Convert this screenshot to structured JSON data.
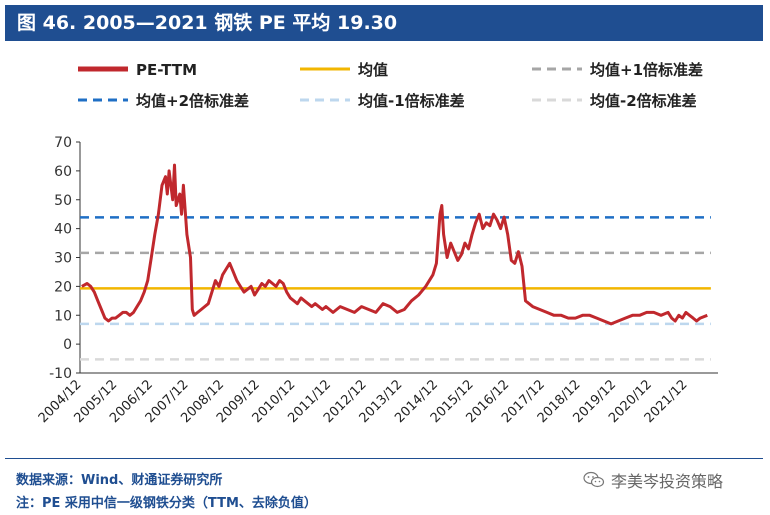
{
  "title": "图 46. 2005—2021 钢铁 PE 平均 19.30",
  "footer": {
    "source": "数据来源：Wind、财通证券研究所",
    "note": "注：PE 采用中信一级钢铁分类（TTM、去除负值）"
  },
  "watermark": {
    "text": "李美岑投资策略",
    "icon": "wechat-icon"
  },
  "chart_data": {
    "type": "line",
    "ylim": [
      -10,
      70
    ],
    "yticks": [
      -10,
      0,
      10,
      20,
      30,
      40,
      50,
      60,
      70
    ],
    "x_categories": [
      "2004/12",
      "2005/12",
      "2006/12",
      "2007/12",
      "2008/12",
      "2009/12",
      "2010/12",
      "2011/12",
      "2012/12",
      "2013/12",
      "2014/12",
      "2015/12",
      "2016/12",
      "2017/12",
      "2018/12",
      "2019/12",
      "2020/12",
      "2021/12"
    ],
    "x_domain": [
      2004.9,
      2022.8
    ],
    "grid": false,
    "legend_position": "top",
    "series": [
      {
        "name": "PE-TTM",
        "style": "solid",
        "color": "#c0282d",
        "width": 4,
        "x": [
          2004.95,
          2005.1,
          2005.2,
          2005.3,
          2005.4,
          2005.5,
          2005.6,
          2005.7,
          2005.8,
          2005.9,
          2006.0,
          2006.1,
          2006.2,
          2006.3,
          2006.4,
          2006.5,
          2006.6,
          2006.7,
          2006.8,
          2006.9,
          2007.0,
          2007.1,
          2007.2,
          2007.3,
          2007.35,
          2007.4,
          2007.5,
          2007.55,
          2007.6,
          2007.7,
          2007.75,
          2007.8,
          2007.9,
          2008.0,
          2008.05,
          2008.1,
          2008.2,
          2008.3,
          2008.4,
          2008.5,
          2008.6,
          2008.7,
          2008.8,
          2008.9,
          2009.0,
          2009.1,
          2009.2,
          2009.3,
          2009.4,
          2009.5,
          2009.6,
          2009.7,
          2009.8,
          2009.9,
          2010.0,
          2010.1,
          2010.2,
          2010.3,
          2010.4,
          2010.5,
          2010.6,
          2010.7,
          2010.8,
          2010.9,
          2011.0,
          2011.1,
          2011.2,
          2011.3,
          2011.4,
          2011.5,
          2011.6,
          2011.7,
          2011.8,
          2011.9,
          2012.0,
          2012.2,
          2012.4,
          2012.6,
          2012.8,
          2013.0,
          2013.2,
          2013.4,
          2013.6,
          2013.8,
          2014.0,
          2014.2,
          2014.4,
          2014.6,
          2014.8,
          2014.9,
          2015.0,
          2015.05,
          2015.1,
          2015.2,
          2015.3,
          2015.4,
          2015.5,
          2015.6,
          2015.7,
          2015.8,
          2015.9,
          2016.0,
          2016.1,
          2016.2,
          2016.3,
          2016.4,
          2016.5,
          2016.6,
          2016.7,
          2016.8,
          2016.9,
          2017.0,
          2017.1,
          2017.2,
          2017.3,
          2017.4,
          2017.5,
          2017.6,
          2017.8,
          2018.0,
          2018.2,
          2018.4,
          2018.6,
          2018.8,
          2019.0,
          2019.2,
          2019.4,
          2019.6,
          2019.8,
          2020.0,
          2020.2,
          2020.4,
          2020.6,
          2020.8,
          2021.0,
          2021.2,
          2021.4,
          2021.5,
          2021.6,
          2021.7,
          2021.8,
          2021.9,
          2022.0,
          2022.1,
          2022.2,
          2022.3,
          2022.5
        ],
        "y": [
          20,
          21,
          20,
          18,
          15,
          12,
          9,
          8,
          9,
          9,
          10,
          11,
          11,
          10,
          11,
          13,
          15,
          18,
          22,
          30,
          38,
          45,
          55,
          58,
          52,
          60,
          50,
          62,
          48,
          52,
          45,
          55,
          38,
          30,
          12,
          10,
          11,
          12,
          13,
          14,
          18,
          22,
          20,
          24,
          26,
          28,
          25,
          22,
          20,
          18,
          19,
          20,
          17,
          19,
          21,
          20,
          22,
          21,
          20,
          22,
          21,
          18,
          16,
          15,
          14,
          16,
          15,
          14,
          13,
          14,
          13,
          12,
          13,
          12,
          11,
          13,
          12,
          11,
          13,
          12,
          11,
          14,
          13,
          11,
          12,
          15,
          17,
          20,
          24,
          28,
          45,
          48,
          38,
          30,
          35,
          32,
          29,
          31,
          35,
          33,
          38,
          42,
          45,
          40,
          42,
          41,
          45,
          43,
          40,
          44,
          38,
          29,
          28,
          32,
          27,
          15,
          14,
          13,
          12,
          11,
          10,
          10,
          9,
          9,
          10,
          10,
          9,
          8,
          7,
          8,
          9,
          10,
          10,
          11,
          11,
          10,
          11,
          9,
          8,
          10,
          9,
          11,
          10,
          9,
          8,
          9,
          10
        ]
      },
      {
        "name": "均值",
        "style": "solid",
        "color": "#f2b600",
        "width": 2.5,
        "value": 19.3
      },
      {
        "name": "均值+1倍标准差",
        "style": "dash",
        "color": "#a6a6a6",
        "width": 2.5,
        "value": 31.6
      },
      {
        "name": "均值+2倍标准差",
        "style": "dash",
        "color": "#1f6fc5",
        "width": 2.5,
        "value": 43.9
      },
      {
        "name": "均值-1倍标准差",
        "style": "dash",
        "color": "#bdd7ee",
        "width": 2.5,
        "value": 7.0
      },
      {
        "name": "均值-2倍标准差",
        "style": "dash",
        "color": "#d9d9d9",
        "width": 2.5,
        "value": -5.3
      }
    ]
  }
}
